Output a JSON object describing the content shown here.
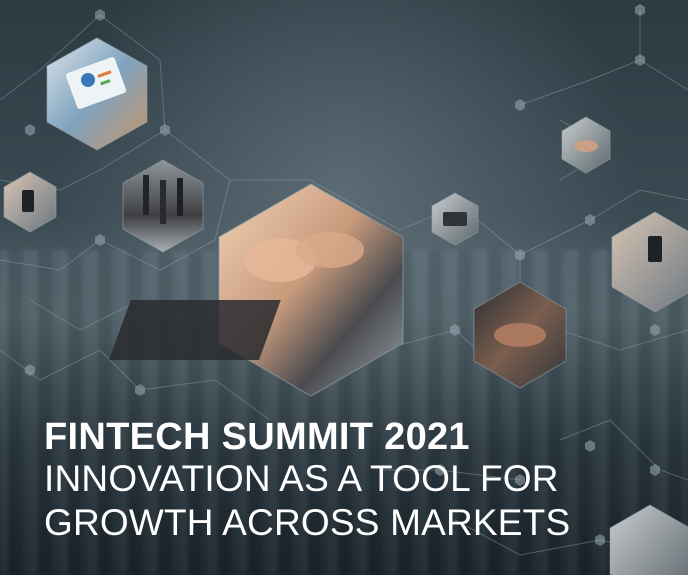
{
  "banner": {
    "headline": {
      "line1": "FINTECH SUMMIT 2021",
      "line2": "INNOVATION AS A TOOL FOR",
      "line3": "GROWTH ACROSS MARKETS"
    },
    "colors": {
      "background": "#2c3a42",
      "network_lines": "#8fa2ab",
      "text": "#ffffff"
    },
    "imagery": [
      "tablet-chart-photo",
      "handshake-photo",
      "smartphone-photo",
      "business-people-walking-photo",
      "laptop-typing-photo",
      "desk-phone-photo",
      "hand-holding-phone-photo",
      "team-hands-stack-photo"
    ]
  }
}
